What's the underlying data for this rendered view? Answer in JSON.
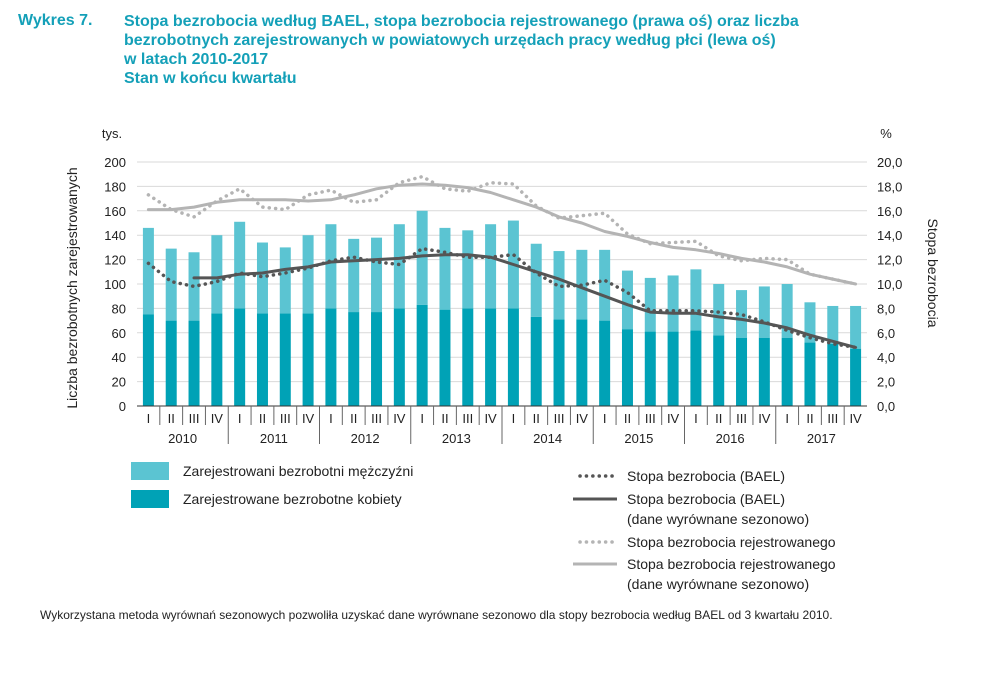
{
  "figure": {
    "label": "Wykres 7.",
    "title_lines": [
      "Stopa bezrobocia według BAEL, stopa bezrobocia rejestrowanego (prawa oś) oraz liczba",
      "bezrobotnych zarejestrowanych w powiatowych urzędach pracy według płci (lewa oś)",
      "w latach 2010-2017",
      "Stan w końcu kwartału"
    ],
    "footnote": "Wykorzystana metoda wyrównań sezonowych pozwoliła uzyskać dane wyrównane sezonowo dla stopy bezrobocia według BAEL od 3 kwartału 2010."
  },
  "colors": {
    "title": "#14a0b8",
    "men": "#5bc4d2",
    "women": "#00a2b6",
    "bael": "#555555",
    "registered": "#b4b4b4"
  },
  "chart_data": {
    "type": "bar",
    "quarters": [
      "I",
      "II",
      "III",
      "IV"
    ],
    "years": [
      "2010",
      "2011",
      "2012",
      "2013",
      "2014",
      "2015",
      "2016",
      "2017"
    ],
    "left_axis": {
      "unit": "tys.",
      "label": "Liczba bezrobotnych zarejestrowanych",
      "ylim": [
        0,
        200
      ],
      "ticks": [
        "0",
        "20",
        "40",
        "60",
        "80",
        "100",
        "120",
        "140",
        "160",
        "180",
        "200"
      ]
    },
    "right_axis": {
      "unit": "%",
      "label": "Stopa bezrobocia",
      "ylim": [
        0,
        20
      ],
      "ticks": [
        "0,0",
        "2,0",
        "4,0",
        "6,0",
        "8,0",
        "10,0",
        "12,0",
        "14,0",
        "16,0",
        "18,0",
        "20,0"
      ]
    },
    "grid": true,
    "series": [
      {
        "name": "Zarejestrowane bezrobotne kobiety",
        "kind": "bar-stack-bottom",
        "axis": "left",
        "values": [
          75,
          70,
          70,
          76,
          80,
          76,
          76,
          76,
          80,
          77,
          77,
          80,
          83,
          79,
          80,
          80,
          80,
          73,
          71,
          71,
          70,
          63,
          61,
          61,
          62,
          58,
          56,
          56,
          56,
          52,
          51,
          47
        ]
      },
      {
        "name": "Zarejestrowani bezrobotni mężczyźni",
        "kind": "bar-stack-top",
        "axis": "left",
        "values": [
          71,
          59,
          56,
          64,
          71,
          58,
          54,
          64,
          69,
          60,
          61,
          69,
          77,
          67,
          64,
          69,
          72,
          60,
          56,
          57,
          58,
          48,
          44,
          46,
          50,
          42,
          39,
          42,
          44,
          33,
          31,
          35
        ]
      },
      {
        "name": "Stopa bezrobocia (BAEL)",
        "kind": "dotted",
        "axis": "right",
        "values": [
          11.7,
          10.2,
          9.8,
          10.2,
          10.9,
          10.6,
          10.9,
          11.3,
          11.9,
          12.2,
          11.8,
          11.6,
          12.9,
          12.6,
          12.2,
          12.2,
          12.4,
          10.9,
          9.8,
          9.9,
          10.3,
          9.3,
          7.8,
          7.8,
          7.8,
          7.7,
          7.5,
          6.9,
          6.2,
          5.6,
          5.1,
          4.8
        ]
      },
      {
        "name": "Stopa bezrobocia (BAEL)",
        "name_line2": "(dane wyrównane sezonowo)",
        "kind": "solid",
        "axis": "right",
        "values": [
          null,
          null,
          10.5,
          10.5,
          10.8,
          10.9,
          11.2,
          11.4,
          11.8,
          11.9,
          12.0,
          12.1,
          12.3,
          12.4,
          12.4,
          12.2,
          11.6,
          11.0,
          10.4,
          9.7,
          9.0,
          8.3,
          7.7,
          7.6,
          7.6,
          7.3,
          7.1,
          6.8,
          6.4,
          5.8,
          5.3,
          4.8
        ]
      },
      {
        "name": "Stopa bezrobocia rejestrowanego",
        "kind": "dotted",
        "axis": "right",
        "values": [
          17.3,
          16.1,
          15.5,
          16.8,
          17.8,
          16.3,
          16.1,
          17.3,
          17.7,
          16.7,
          16.9,
          18.3,
          18.8,
          17.8,
          17.6,
          18.3,
          18.2,
          16.4,
          15.4,
          15.6,
          15.8,
          14.1,
          13.3,
          13.4,
          13.5,
          12.3,
          11.9,
          12.1,
          12.0,
          10.8,
          10.4,
          10.0
        ]
      },
      {
        "name": "Stopa bezrobocia rejestrowanego",
        "name_line2": "(dane wyrównane sezonowo)",
        "kind": "solid",
        "axis": "right",
        "values": [
          16.1,
          16.1,
          16.3,
          16.7,
          16.9,
          16.9,
          16.9,
          16.8,
          16.9,
          17.3,
          17.8,
          18.1,
          18.2,
          18.1,
          17.9,
          17.5,
          16.9,
          16.3,
          15.5,
          15.0,
          14.3,
          13.9,
          13.4,
          13.0,
          12.8,
          12.5,
          12.1,
          11.8,
          11.4,
          10.8,
          10.4,
          10.0
        ]
      }
    ]
  }
}
